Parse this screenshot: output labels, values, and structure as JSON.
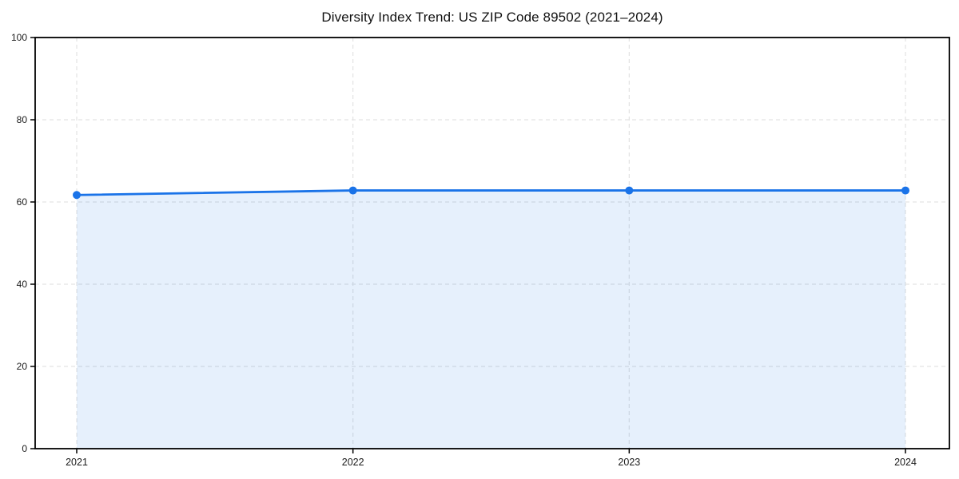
{
  "page": {
    "background": "#ffffff"
  },
  "chart_data": {
    "type": "area",
    "title": "Diversity Index Trend: US ZIP Code 89502 (2021–2024)",
    "x": [
      "2021",
      "2022",
      "2023",
      "2024"
    ],
    "series": [
      {
        "name": "Diversity Index",
        "values": [
          61.7,
          62.8,
          62.8,
          62.8
        ]
      }
    ],
    "xlabel": "",
    "ylabel": "",
    "ylim": [
      0,
      100
    ],
    "yticks": [
      0,
      20,
      40,
      60,
      80,
      100
    ],
    "grid": true,
    "grid_style": "dashed",
    "legend_position": "none",
    "marker": "circle",
    "colors": {
      "line": "#1a73e8",
      "marker": "#1a73e8",
      "fill": "rgba(26,115,232,0.11)",
      "grid": "#e3e3e3",
      "axis": "#000000",
      "tick_label": "#1a1a1a",
      "title": "#111111"
    }
  }
}
